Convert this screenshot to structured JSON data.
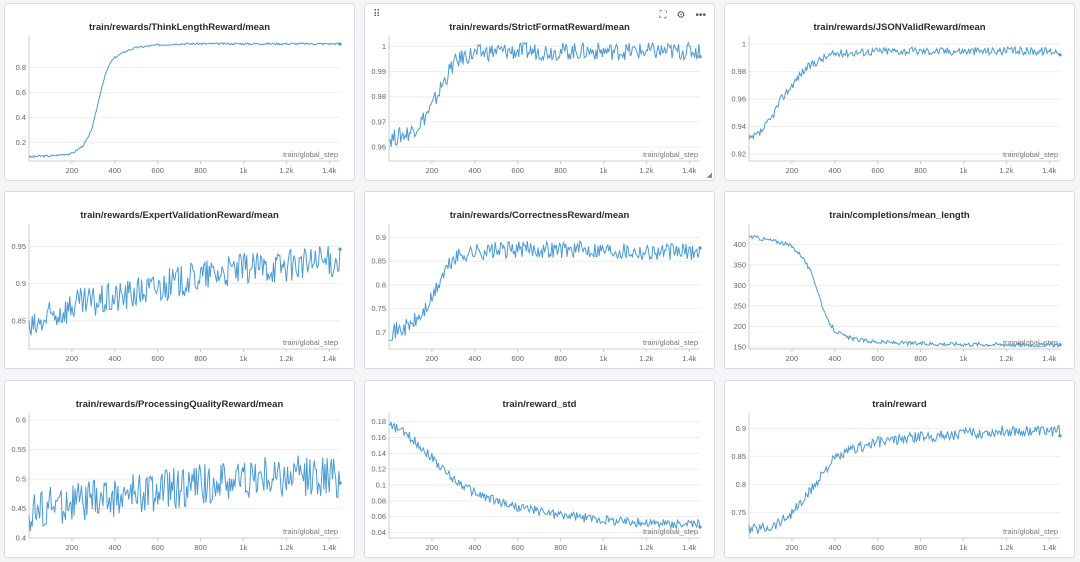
{
  "panels": [
    {
      "title": "train/rewards/ThinkLengthReward/mean",
      "xlabel": "train/global_step",
      "yticks": [
        0.2,
        0.4,
        0.6,
        0.8
      ],
      "ytick_labels": [
        "0.2",
        "0.4",
        "0.6",
        "0.8"
      ],
      "ylim": [
        0.05,
        1.02
      ],
      "show_toolbar": false
    },
    {
      "title": "train/rewards/StrictFormatReward/mean",
      "xlabel": "train/global_step",
      "yticks": [
        0.96,
        0.97,
        0.98,
        0.99,
        1.0
      ],
      "ytick_labels": [
        "0.96",
        "0.97",
        "0.98",
        "0.99",
        "1"
      ],
      "ylim": [
        0.9545,
        1.0025
      ],
      "show_toolbar": true
    },
    {
      "title": "train/rewards/JSONValidReward/mean",
      "xlabel": "train/global_step",
      "yticks": [
        0.92,
        0.94,
        0.96,
        0.98,
        1.0
      ],
      "ytick_labels": [
        "0.92",
        "0.94",
        "0.96",
        "0.98",
        "1"
      ],
      "ylim": [
        0.915,
        1.003
      ],
      "show_toolbar": false
    },
    {
      "title": "train/rewards/ExpertValidationReward/mean",
      "xlabel": "train/global_step",
      "yticks": [
        0.85,
        0.9,
        0.95
      ],
      "ytick_labels": [
        "0.85",
        "0.9",
        "0.95"
      ],
      "ylim": [
        0.812,
        0.975
      ],
      "show_toolbar": false
    },
    {
      "title": "train/rewards/CorrectnessReward/mean",
      "xlabel": "train/global_step",
      "yticks": [
        0.7,
        0.75,
        0.8,
        0.85,
        0.9
      ],
      "ytick_labels": [
        "0.7",
        "0.75",
        "0.8",
        "0.85",
        "0.9"
      ],
      "ylim": [
        0.665,
        0.92
      ],
      "show_toolbar": false
    },
    {
      "title": "train/completions/mean_length",
      "xlabel": "train/global_step",
      "yticks": [
        150,
        200,
        250,
        300,
        350,
        400
      ],
      "ytick_labels": [
        "150",
        "200",
        "250",
        "300",
        "350",
        "400"
      ],
      "ylim": [
        145,
        440
      ],
      "show_toolbar": false
    },
    {
      "title": "train/rewards/ProcessingQualityReward/mean",
      "xlabel": "train/global_step",
      "yticks": [
        0.4,
        0.45,
        0.5,
        0.55,
        0.6
      ],
      "ytick_labels": [
        "0.4",
        "0.45",
        "0.5",
        "0.55",
        "0.6"
      ],
      "ylim": [
        0.4,
        0.605
      ],
      "show_toolbar": false
    },
    {
      "title": "train/reward_std",
      "xlabel": "train/global_step",
      "yticks": [
        0.04,
        0.06,
        0.08,
        0.1,
        0.12,
        0.14,
        0.16,
        0.18
      ],
      "ytick_labels": [
        "0.04",
        "0.06",
        "0.08",
        "0.1",
        "0.12",
        "0.14",
        "0.16",
        "0.18"
      ],
      "ylim": [
        0.033,
        0.186
      ],
      "show_toolbar": false
    },
    {
      "title": "train/reward",
      "xlabel": "train/global_step",
      "yticks": [
        0.75,
        0.8,
        0.85,
        0.9
      ],
      "ytick_labels": [
        "0.75",
        "0.8",
        "0.85",
        "0.9"
      ],
      "ylim": [
        0.705,
        0.92
      ],
      "show_toolbar": false
    }
  ],
  "xaxis": {
    "ticks": [
      200,
      400,
      600,
      800,
      1000,
      1200,
      1400
    ],
    "tick_labels": [
      "200",
      "400",
      "600",
      "800",
      "1k",
      "1.2k",
      "1.4k"
    ],
    "xlim": [
      0,
      1450
    ]
  },
  "toolbar_icons": [
    "drag-handle-icon",
    "fullscreen-icon",
    "settings-icon",
    "more-icon"
  ],
  "colors": {
    "line": "#4a9bd4",
    "grid": "#eeeeee",
    "axis": "#cccccc"
  },
  "chart_data": [
    {
      "type": "line",
      "title": "train/rewards/ThinkLengthReward/mean",
      "xlabel": "train/global_step",
      "ylabel": "",
      "xlim": [
        0,
        1450
      ],
      "ylim": [
        0.05,
        1.02
      ],
      "series": [
        {
          "x": [
            0,
            50,
            100,
            150,
            200,
            250,
            280,
            300,
            320,
            340,
            360,
            380,
            400,
            450,
            500,
            600,
            700,
            800,
            900,
            1000,
            1200,
            1400,
            1450
          ],
          "y": [
            0.08,
            0.09,
            0.09,
            0.1,
            0.11,
            0.17,
            0.25,
            0.35,
            0.5,
            0.65,
            0.76,
            0.84,
            0.88,
            0.93,
            0.96,
            0.98,
            0.99,
            0.99,
            0.99,
            0.99,
            0.99,
            0.99,
            0.99
          ],
          "noise": 0.008
        }
      ]
    },
    {
      "type": "line",
      "title": "train/rewards/StrictFormatReward/mean",
      "xlabel": "train/global_step",
      "ylabel": "",
      "xlim": [
        0,
        1450
      ],
      "ylim": [
        0.9545,
        1.0025
      ],
      "series": [
        {
          "x": [
            0,
            100,
            150,
            200,
            250,
            300,
            350,
            400,
            500,
            600,
            800,
            1000,
            1200,
            1400,
            1450
          ],
          "y": [
            0.963,
            0.966,
            0.97,
            0.976,
            0.985,
            0.993,
            0.996,
            0.997,
            0.998,
            0.998,
            0.998,
            0.998,
            0.998,
            0.998,
            0.998
          ],
          "noise": 0.0035
        }
      ]
    },
    {
      "type": "line",
      "title": "train/rewards/JSONValidReward/mean",
      "xlabel": "train/global_step",
      "ylabel": "",
      "xlim": [
        0,
        1450
      ],
      "ylim": [
        0.915,
        1.003
      ],
      "series": [
        {
          "x": [
            0,
            50,
            100,
            150,
            200,
            250,
            300,
            350,
            400,
            500,
            600,
            800,
            1000,
            1200,
            1400,
            1450
          ],
          "y": [
            0.93,
            0.935,
            0.945,
            0.96,
            0.97,
            0.98,
            0.986,
            0.99,
            0.993,
            0.994,
            0.995,
            0.995,
            0.995,
            0.995,
            0.995,
            0.995
          ],
          "noise": 0.003
        }
      ]
    },
    {
      "type": "line",
      "title": "train/rewards/ExpertValidationReward/mean",
      "xlabel": "train/global_step",
      "ylabel": "",
      "xlim": [
        0,
        1450
      ],
      "ylim": [
        0.812,
        0.975
      ],
      "series": [
        {
          "x": [
            0,
            100,
            200,
            400,
            600,
            800,
            1000,
            1200,
            1400,
            1450
          ],
          "y": [
            0.835,
            0.855,
            0.87,
            0.88,
            0.895,
            0.91,
            0.92,
            0.925,
            0.93,
            0.93
          ],
          "noise": 0.022
        }
      ]
    },
    {
      "type": "line",
      "title": "train/rewards/CorrectnessReward/mean",
      "xlabel": "train/global_step",
      "ylabel": "",
      "xlim": [
        0,
        1450
      ],
      "ylim": [
        0.665,
        0.92
      ],
      "series": [
        {
          "x": [
            0,
            50,
            100,
            150,
            200,
            250,
            300,
            350,
            400,
            600,
            800,
            1000,
            1200,
            1400,
            1450
          ],
          "y": [
            0.7,
            0.705,
            0.715,
            0.735,
            0.77,
            0.82,
            0.855,
            0.865,
            0.87,
            0.875,
            0.875,
            0.875,
            0.87,
            0.87,
            0.87
          ],
          "noise": 0.018
        }
      ]
    },
    {
      "type": "line",
      "title": "train/completions/mean_length",
      "xlabel": "train/global_step",
      "ylabel": "",
      "xlim": [
        0,
        1450
      ],
      "ylim": [
        145,
        440
      ],
      "series": [
        {
          "x": [
            0,
            50,
            100,
            150,
            200,
            250,
            300,
            330,
            360,
            400,
            450,
            500,
            600,
            800,
            1000,
            1200,
            1400,
            1450
          ],
          "y": [
            420,
            415,
            410,
            405,
            395,
            370,
            320,
            270,
            220,
            190,
            175,
            168,
            162,
            158,
            157,
            156,
            155,
            155
          ],
          "noise": 5
        }
      ]
    },
    {
      "type": "line",
      "title": "train/rewards/ProcessingQualityReward/mean",
      "xlabel": "train/global_step",
      "ylabel": "",
      "xlim": [
        0,
        1450
      ],
      "ylim": [
        0.4,
        0.605
      ],
      "series": [
        {
          "x": [
            0,
            100,
            200,
            400,
            600,
            800,
            1000,
            1200,
            1400,
            1450
          ],
          "y": [
            0.44,
            0.455,
            0.46,
            0.47,
            0.48,
            0.49,
            0.5,
            0.505,
            0.505,
            0.5
          ],
          "noise": 0.035
        }
      ]
    },
    {
      "type": "line",
      "title": "train/reward_std",
      "xlabel": "train/global_step",
      "ylabel": "",
      "xlim": [
        0,
        1450
      ],
      "ylim": [
        0.033,
        0.186
      ],
      "series": [
        {
          "x": [
            0,
            50,
            100,
            150,
            200,
            250,
            300,
            400,
            500,
            600,
            800,
            1000,
            1200,
            1400,
            1450
          ],
          "y": [
            0.175,
            0.17,
            0.16,
            0.148,
            0.135,
            0.12,
            0.108,
            0.09,
            0.08,
            0.072,
            0.062,
            0.056,
            0.052,
            0.05,
            0.05
          ],
          "noise": 0.006
        }
      ]
    },
    {
      "type": "line",
      "title": "train/reward",
      "xlabel": "train/global_step",
      "ylabel": "",
      "xlim": [
        0,
        1450
      ],
      "ylim": [
        0.705,
        0.92
      ],
      "series": [
        {
          "x": [
            0,
            100,
            150,
            200,
            250,
            300,
            350,
            400,
            500,
            600,
            800,
            1000,
            1200,
            1400,
            1450
          ],
          "y": [
            0.72,
            0.725,
            0.735,
            0.75,
            0.77,
            0.795,
            0.825,
            0.845,
            0.865,
            0.875,
            0.885,
            0.89,
            0.895,
            0.895,
            0.895
          ],
          "noise": 0.01
        }
      ]
    }
  ]
}
